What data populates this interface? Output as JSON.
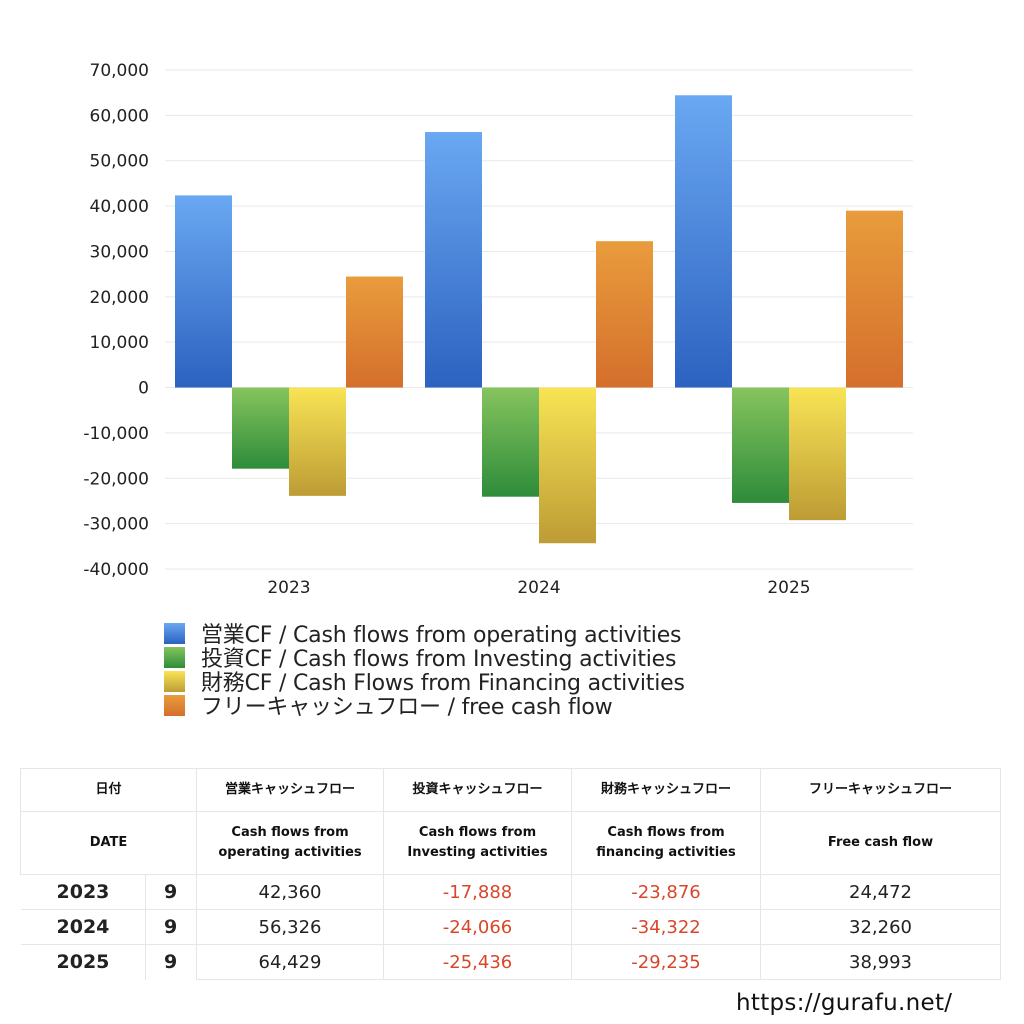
{
  "chart_data": {
    "type": "bar",
    "categories": [
      "2023",
      "2024",
      "2025"
    ],
    "series": [
      {
        "name": "営業CF / Cash flows from operating activities",
        "values": [
          42360,
          56326,
          64429
        ],
        "color": "#3a78d8"
      },
      {
        "name": "投資CF / Cash flows from Investing activities",
        "values": [
          -17888,
          -24066,
          -25436
        ],
        "color": "#4aa043"
      },
      {
        "name": "財務CF / Cash Flows from Financing activities",
        "values": [
          -23876,
          -34322,
          -29235
        ],
        "color": "#e7c83a"
      },
      {
        "name": "フリーキャッシュフロー / free cash flow",
        "values": [
          24472,
          32260,
          38993
        ],
        "color": "#e08530"
      }
    ],
    "yticks": [
      "70,000",
      "60,000",
      "50,000",
      "40,000",
      "30,000",
      "20,000",
      "10,000",
      "0",
      "-10,000",
      "-20,000",
      "-30,000",
      "-40,000"
    ],
    "ylim": [
      -40000,
      70000
    ],
    "grid": true,
    "legend_position": "bottom-left"
  },
  "table": {
    "headers_jp": [
      "日付",
      "営業キャッシュフロー",
      "投資キャッシュフロー",
      "財務キャッシュフロー",
      "フリーキャッシュフロー"
    ],
    "headers_en": {
      "date": "DATE",
      "op_l1": "Cash flows from",
      "op_l2": "operating activities",
      "inv_l1": "Cash flows from",
      "inv_l2": "Investing activities",
      "fin_l1": "Cash flows from",
      "fin_l2": "financing activities",
      "free": "Free cash flow"
    },
    "rows": [
      {
        "year": "2023",
        "month": "9",
        "op": "42,360",
        "inv": "-17,888",
        "fin": "-23,876",
        "free": "24,472"
      },
      {
        "year": "2024",
        "month": "9",
        "op": "56,326",
        "inv": "-24,066",
        "fin": "-34,322",
        "free": "32,260"
      },
      {
        "year": "2025",
        "month": "9",
        "op": "64,429",
        "inv": "-25,436",
        "fin": "-29,235",
        "free": "38,993"
      }
    ]
  },
  "footer": {
    "url": "https://gurafu.net/"
  }
}
